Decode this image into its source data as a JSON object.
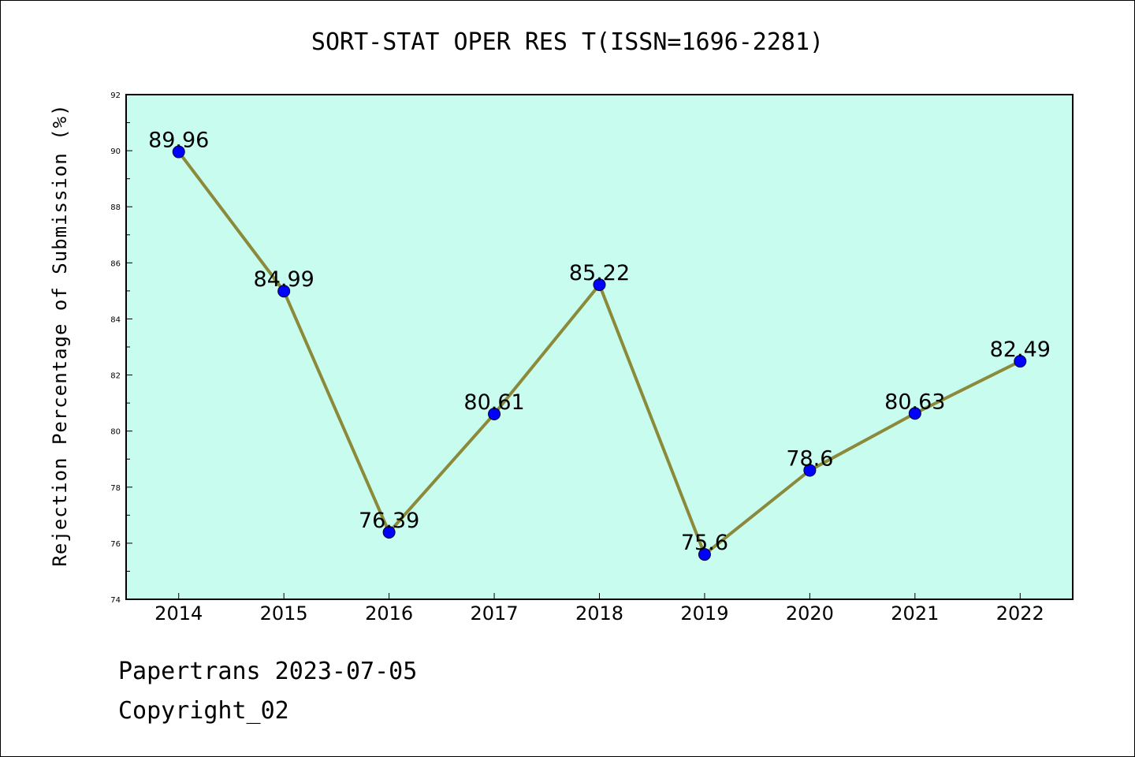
{
  "chart_data": {
    "type": "line",
    "title": "SORT-STAT OPER RES T(ISSN=1696-2281)",
    "xlabel": "",
    "ylabel": "Rejection Percentage of Submission (%)",
    "categories": [
      "2014",
      "2015",
      "2016",
      "2017",
      "2018",
      "2019",
      "2020",
      "2021",
      "2022"
    ],
    "series": [
      {
        "values": [
          89.96,
          84.99,
          76.39,
          80.61,
          85.22,
          75.6,
          78.6,
          80.63,
          82.49
        ],
        "labels": [
          "89.96",
          "84.99",
          "76.39",
          "80.61",
          "85.22",
          "75.6",
          "78.6",
          "80.63",
          "82.49"
        ]
      }
    ],
    "ylim": [
      74,
      92
    ],
    "yticks": [
      "74",
      "76",
      "78",
      "80",
      "82",
      "84",
      "86",
      "88",
      "90",
      "92"
    ],
    "grid": false,
    "colors": {
      "plot_background": "#c8fcee",
      "line": "#8b8a3a",
      "marker": "#0000ff"
    }
  },
  "footer": {
    "line1": "Papertrans 2023-07-05",
    "line2": "Copyright_02"
  }
}
